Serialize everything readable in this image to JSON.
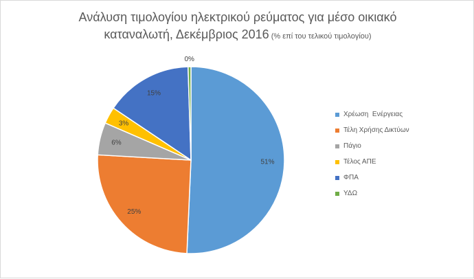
{
  "title": {
    "line1": "Ανάλυση τιμολογίου ηλεκτρικού ρεύματος για μέσο οικιακό",
    "line2": "καταναλωτή, Δεκέμβριος 2016",
    "suffix": " (% επί του τελικού τιμολογίου)"
  },
  "chart_data": {
    "type": "pie",
    "title": "Ανάλυση τιμολογίου ηλεκτρικού ρεύματος για μέσο οικιακό καταναλωτή, Δεκέμβριος 2016 (% επί του τελικού τιμολογίου)",
    "categories": [
      "Χρέωση  Ενέργειας",
      "Τέλη Χρήσης Δικτύων",
      "Πάγιο",
      "Τέλος ΑΠΕ",
      "ΦΠΑ",
      "ΥΔΩ"
    ],
    "values": [
      50.7,
      25.2,
      5.6,
      2.9,
      15.1,
      0.5
    ],
    "data_labels": [
      "51%",
      "25%",
      "6%",
      "3%",
      "15%",
      "0%"
    ],
    "colors": [
      "#5b9bd5",
      "#ed7d31",
      "#a5a5a5",
      "#ffc000",
      "#4472c4",
      "#70ad47"
    ],
    "legend_position": "right"
  }
}
